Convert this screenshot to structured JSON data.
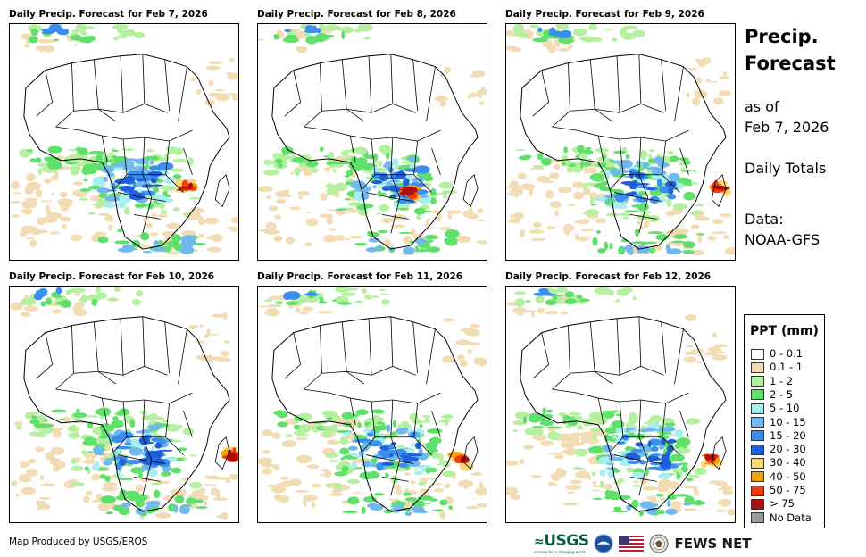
{
  "panels": [
    {
      "title": "Daily Precip. Forecast for Feb 7, 2026"
    },
    {
      "title": "Daily Precip. Forecast for Feb 8, 2026"
    },
    {
      "title": "Daily Precip. Forecast for Feb 9, 2026"
    },
    {
      "title": "Daily Precip. Forecast for Feb 10, 2026"
    },
    {
      "title": "Daily Precip. Forecast for Feb 11, 2026"
    },
    {
      "title": "Daily Precip. Forecast for Feb 12, 2026"
    }
  ],
  "side": {
    "title_line1": "Precip.",
    "title_line2": "Forecast",
    "as_of_line1": "as of",
    "as_of_line2": "Feb 7, 2026",
    "totals": "Daily Totals",
    "data_line1": "Data:",
    "data_line2": "NOAA-GFS"
  },
  "legend": {
    "title": "PPT (mm)",
    "items": [
      {
        "label": "0 - 0.1",
        "color": "#ffffff"
      },
      {
        "label": "0.1 - 1",
        "color": "#f2dcb4"
      },
      {
        "label": "1 - 2",
        "color": "#b4f0a0"
      },
      {
        "label": "2 - 5",
        "color": "#5ee06a"
      },
      {
        "label": "5 - 10",
        "color": "#a6eef2"
      },
      {
        "label": "10 - 15",
        "color": "#72b8f0"
      },
      {
        "label": "15 - 20",
        "color": "#3a8ef0"
      },
      {
        "label": "20 - 30",
        "color": "#1e5ed8"
      },
      {
        "label": "30 - 40",
        "color": "#fad873"
      },
      {
        "label": "40 - 50",
        "color": "#f2a007"
      },
      {
        "label": "50 - 75",
        "color": "#f03c0a"
      },
      {
        "label": "> 75",
        "color": "#aa1010"
      },
      {
        "label": "No Data",
        "color": "#999999"
      }
    ]
  },
  "footer": {
    "credit": "Map Produced by USGS/EROS",
    "usgs_label": "USGS",
    "usgs_tagline": "science for a changing world",
    "fews_label": "FEWS NET"
  }
}
